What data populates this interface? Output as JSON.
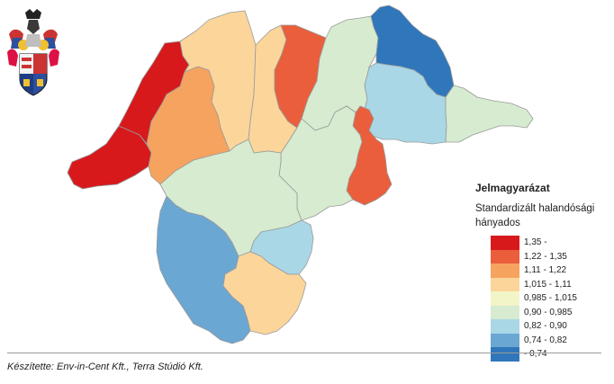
{
  "legend": {
    "title": "Jelmagyarázat",
    "subtitle": "Standardizált halandósági hányados",
    "classes": [
      {
        "label": "1,35 -",
        "color": "#d7191c"
      },
      {
        "label": "1,22 - 1,35",
        "color": "#ea5e3c"
      },
      {
        "label": "1,11 - 1,22",
        "color": "#f6a35f"
      },
      {
        "label": "1,015 - 1,11",
        "color": "#fbd59a"
      },
      {
        "label": "0,985 - 1,015",
        "color": "#f2f5c8"
      },
      {
        "label": "0,90 - 0,985",
        "color": "#d6ebcf"
      },
      {
        "label": "0,82 - 0,90",
        "color": "#a9d7e6"
      },
      {
        "label": "0,74 - 0,82",
        "color": "#6ba7d3"
      },
      {
        "label": "- 0,74",
        "color": "#2f77ba"
      }
    ]
  },
  "regions": [
    {
      "id": "west-red",
      "class_index": 0
    },
    {
      "id": "north-central-red",
      "class_index": 0
    },
    {
      "id": "north-west-orange",
      "class_index": 2
    },
    {
      "id": "west-peach",
      "class_index": 3
    },
    {
      "id": "north-peach",
      "class_index": 3
    },
    {
      "id": "north-orange-red",
      "class_index": 1
    },
    {
      "id": "north-east-light-green",
      "class_index": 5
    },
    {
      "id": "far-north-east-blue",
      "class_index": 8
    },
    {
      "id": "east-light-blue",
      "class_index": 6
    },
    {
      "id": "east-light-green",
      "class_index": 5
    },
    {
      "id": "east-orange-red",
      "class_index": 1
    },
    {
      "id": "central-light-green",
      "class_index": 5
    },
    {
      "id": "central-east-light-green",
      "class_index": 5
    },
    {
      "id": "south-west-blue",
      "class_index": 7
    },
    {
      "id": "south-light-blue",
      "class_index": 6
    },
    {
      "id": "south-peach",
      "class_index": 3
    }
  ],
  "footer": {
    "credit": "Készítette: Env-in-Cent Kft., Terra Stúdió Kft."
  },
  "icons": {
    "coat_of_arms": "coat-of-arms-icon"
  }
}
